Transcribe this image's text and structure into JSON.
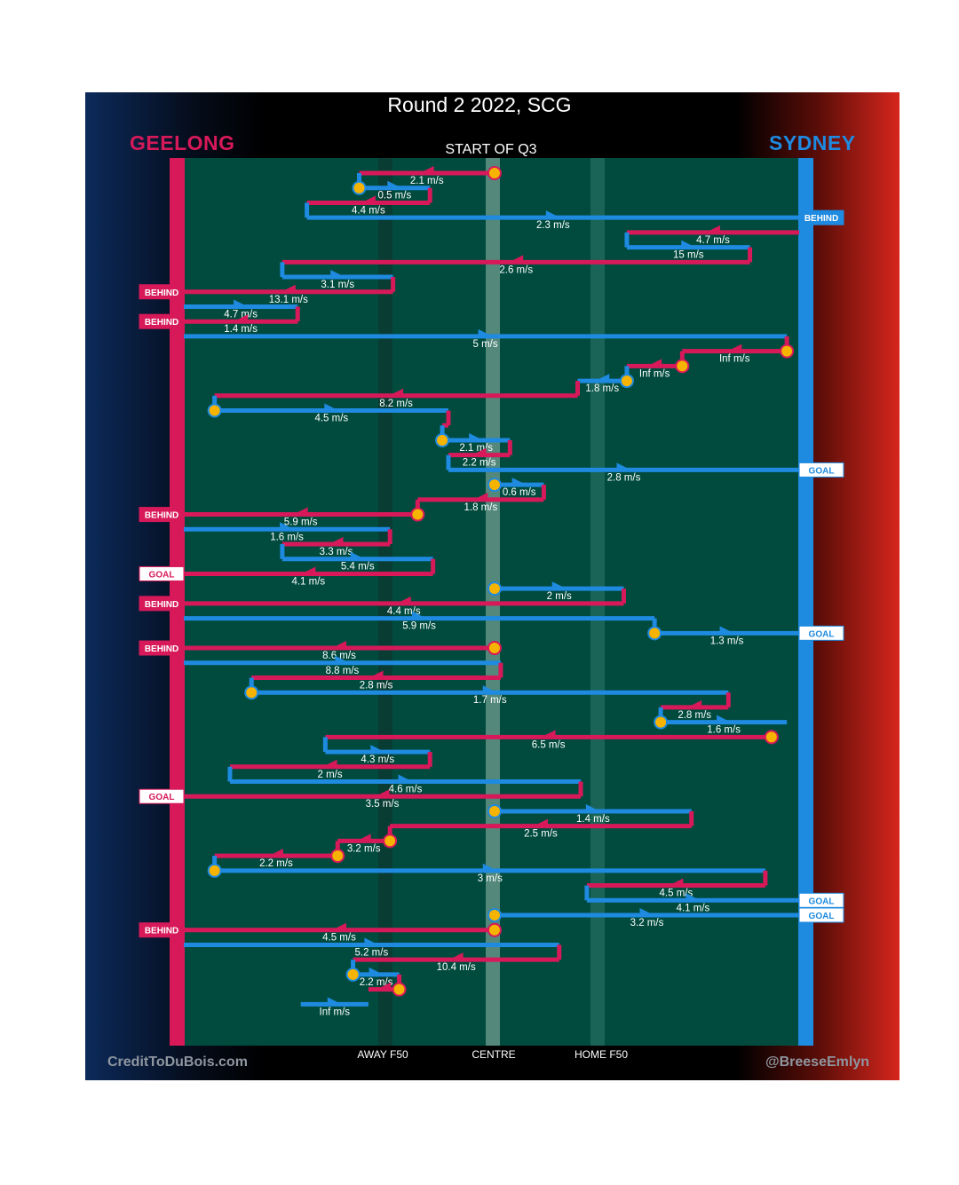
{
  "title": "Round 2 2022, SCG",
  "period_label": "START OF Q3",
  "teams": {
    "left": "GEELONG",
    "right": "SYDNEY"
  },
  "colors": {
    "geelong": "#d7195a",
    "sydney": "#1e8ae0",
    "field": "#004b3e",
    "possession_start": "#f6b400"
  },
  "zone_labels": {
    "away_f50": "AWAY F50",
    "centre": "CENTRE",
    "home_f50": "HOME F50"
  },
  "credits": {
    "left": "CreditToDuBois.com",
    "right": "@BreeseEmlyn"
  },
  "chart_data": {
    "type": "possession-chain",
    "title": "Round 2 2022, SCG",
    "subtitle": "START OF Q3",
    "x_axis": {
      "labels": [
        "AWAY F50",
        "CENTRE",
        "HOME F50"
      ],
      "range": [
        "GEELONG goal",
        "SYDNEY goal"
      ]
    },
    "legend": {
      "GEELONG": "left goal line",
      "SYDNEY": "right goal line"
    },
    "chains": [
      {
        "team": "GEELONG",
        "from": 0.505,
        "to": 0.285,
        "speed": "2.1 m/s",
        "start": true
      },
      {
        "team": "SYDNEY",
        "from": 0.285,
        "to": 0.4,
        "speed": "0.5 m/s",
        "start": true
      },
      {
        "team": "GEELONG",
        "from": 0.4,
        "to": 0.2,
        "speed": "4.4 m/s"
      },
      {
        "team": "SYDNEY",
        "from": 0.2,
        "to": 1.0,
        "speed": "2.3 m/s",
        "end": "BEHIND"
      },
      {
        "team": "GEELONG",
        "from": 1.0,
        "to": 0.72,
        "speed": "4.7 m/s"
      },
      {
        "team": "SYDNEY",
        "from": 0.72,
        "to": 0.92,
        "speed": "15 m/s"
      },
      {
        "team": "GEELONG",
        "from": 0.92,
        "to": 0.16,
        "speed": "2.6 m/s"
      },
      {
        "team": "SYDNEY",
        "from": 0.16,
        "to": 0.34,
        "speed": "3.1 m/s"
      },
      {
        "team": "GEELONG",
        "from": 0.34,
        "to": 0.0,
        "speed": "13.1 m/s",
        "end": "BEHIND"
      },
      {
        "team": "SYDNEY",
        "from": 0.0,
        "to": 0.185,
        "speed": "4.7 m/s"
      },
      {
        "team": "GEELONG",
        "from": 0.185,
        "to": 0.0,
        "speed": "1.4 m/s",
        "end": "BEHIND"
      },
      {
        "team": "SYDNEY",
        "from": 0.0,
        "to": 0.98,
        "speed": "5 m/s"
      },
      {
        "team": "GEELONG",
        "from": 0.98,
        "to": 0.81,
        "speed": "Inf m/s",
        "start": true
      },
      {
        "team": "GEELONG",
        "from": 0.81,
        "to": 0.72,
        "speed": "Inf m/s",
        "start": true
      },
      {
        "team": "SYDNEY",
        "from": 0.72,
        "to": 0.64,
        "speed": "1.8 m/s",
        "start": true
      },
      {
        "team": "GEELONG",
        "from": 0.64,
        "to": 0.05,
        "speed": "8.2 m/s"
      },
      {
        "team": "SYDNEY",
        "from": 0.05,
        "to": 0.43,
        "speed": "4.5 m/s",
        "start": true
      },
      {
        "team": "GEELONG",
        "from": 0.43,
        "to": 0.42,
        "speed": ""
      },
      {
        "team": "SYDNEY",
        "from": 0.42,
        "to": 0.53,
        "speed": "2.1 m/s",
        "start": true
      },
      {
        "team": "GEELONG",
        "from": 0.53,
        "to": 0.43,
        "speed": "2.2 m/s"
      },
      {
        "team": "SYDNEY",
        "from": 0.43,
        "to": 1.0,
        "speed": "2.8 m/s",
        "end": "GOAL"
      },
      {
        "team": "SYDNEY",
        "from": 0.505,
        "to": 0.585,
        "speed": "0.6 m/s",
        "start": true
      },
      {
        "team": "GEELONG",
        "from": 0.585,
        "to": 0.38,
        "speed": "1.8 m/s"
      },
      {
        "team": "GEELONG",
        "from": 0.38,
        "to": 0.0,
        "speed": "5.9 m/s",
        "start": true,
        "end": "BEHIND"
      },
      {
        "team": "SYDNEY",
        "from": 0.0,
        "to": 0.335,
        "speed": "1.6 m/s"
      },
      {
        "team": "GEELONG",
        "from": 0.335,
        "to": 0.16,
        "speed": "3.3 m/s"
      },
      {
        "team": "SYDNEY",
        "from": 0.16,
        "to": 0.405,
        "speed": "5.4 m/s"
      },
      {
        "team": "GEELONG",
        "from": 0.405,
        "to": 0.0,
        "speed": "4.1 m/s",
        "end": "GOAL"
      },
      {
        "team": "SYDNEY",
        "from": 0.505,
        "to": 0.715,
        "speed": "2 m/s",
        "start": true
      },
      {
        "team": "GEELONG",
        "from": 0.715,
        "to": 0.0,
        "speed": "4.4 m/s",
        "end": "BEHIND"
      },
      {
        "team": "SYDNEY",
        "from": 0.0,
        "to": 0.765,
        "speed": "5.9 m/s"
      },
      {
        "team": "SYDNEY",
        "from": 0.765,
        "to": 1.0,
        "speed": "1.3 m/s",
        "start": true,
        "end": "GOAL"
      },
      {
        "team": "GEELONG",
        "from": 0.505,
        "to": 0.0,
        "speed": "8.6 m/s",
        "start": true,
        "end": "BEHIND"
      },
      {
        "team": "SYDNEY",
        "from": 0.0,
        "to": 0.515,
        "speed": "8.8 m/s"
      },
      {
        "team": "GEELONG",
        "from": 0.515,
        "to": 0.11,
        "speed": "2.8 m/s"
      },
      {
        "team": "SYDNEY",
        "from": 0.11,
        "to": 0.885,
        "speed": "1.7 m/s",
        "start": true
      },
      {
        "team": "GEELONG",
        "from": 0.885,
        "to": 0.775,
        "speed": "2.8 m/s"
      },
      {
        "team": "SYDNEY",
        "from": 0.775,
        "to": 0.98,
        "speed": "1.6 m/s",
        "start": true
      },
      {
        "team": "GEELONG",
        "from": 0.955,
        "to": 0.23,
        "speed": "6.5 m/s",
        "start": true
      },
      {
        "team": "SYDNEY",
        "from": 0.23,
        "to": 0.4,
        "speed": "4.3 m/s"
      },
      {
        "team": "GEELONG",
        "from": 0.4,
        "to": 0.075,
        "speed": "2 m/s"
      },
      {
        "team": "SYDNEY",
        "from": 0.075,
        "to": 0.645,
        "speed": "4.6 m/s"
      },
      {
        "team": "GEELONG",
        "from": 0.645,
        "to": 0.0,
        "speed": "3.5 m/s",
        "end": "GOAL"
      },
      {
        "team": "SYDNEY",
        "from": 0.505,
        "to": 0.825,
        "speed": "1.4 m/s",
        "start": true
      },
      {
        "team": "GEELONG",
        "from": 0.825,
        "to": 0.335,
        "speed": "2.5 m/s"
      },
      {
        "team": "GEELONG",
        "from": 0.335,
        "to": 0.25,
        "speed": "3.2 m/s",
        "start": true
      },
      {
        "team": "GEELONG",
        "from": 0.25,
        "to": 0.05,
        "speed": "2.2 m/s",
        "start": true
      },
      {
        "team": "SYDNEY",
        "from": 0.05,
        "to": 0.945,
        "speed": "3 m/s",
        "start": true
      },
      {
        "team": "GEELONG",
        "from": 0.945,
        "to": 0.655,
        "speed": "4.5 m/s"
      },
      {
        "team": "SYDNEY",
        "from": 0.655,
        "to": 1.0,
        "speed": "4.1 m/s",
        "end": "GOAL"
      },
      {
        "team": "SYDNEY",
        "from": 0.505,
        "to": 1.0,
        "speed": "3.2 m/s",
        "start": true,
        "end": "GOAL"
      },
      {
        "team": "GEELONG",
        "from": 0.505,
        "to": 0.0,
        "speed": "4.5 m/s",
        "start": true,
        "end": "BEHIND"
      },
      {
        "team": "SYDNEY",
        "from": 0.0,
        "to": 0.61,
        "speed": "5.2 m/s"
      },
      {
        "team": "GEELONG",
        "from": 0.61,
        "to": 0.275,
        "speed": "10.4 m/s"
      },
      {
        "team": "SYDNEY",
        "from": 0.275,
        "to": 0.35,
        "speed": "2.2 m/s",
        "start": true
      },
      {
        "team": "GEELONG",
        "from": 0.35,
        "to": 0.3,
        "speed": "",
        "start": true
      },
      {
        "team": "SYDNEY",
        "from": 0.19,
        "to": 0.3,
        "speed": "Inf m/s"
      }
    ]
  }
}
